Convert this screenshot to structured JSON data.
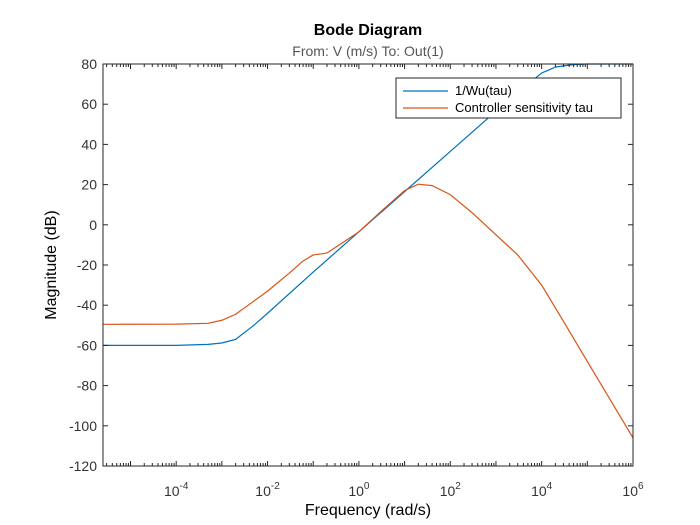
{
  "chart_data": {
    "type": "line",
    "title": "Bode Diagram",
    "subtitle": "From: V (m/s)  To: Out(1)",
    "xlabel": "Frequency  (rad/s)",
    "ylabel": "Magnitude (dB)",
    "x_scale": "log",
    "xlim": [
      2.5e-06,
      1000000.0
    ],
    "ylim": [
      -120,
      80
    ],
    "x_tick_values": [
      0.0001,
      0.01,
      1,
      100,
      10000,
      1000000
    ],
    "x_tick_labels": [
      {
        "base": "10",
        "exp": "-4"
      },
      {
        "base": "10",
        "exp": "-2"
      },
      {
        "base": "10",
        "exp": "0"
      },
      {
        "base": "10",
        "exp": "2"
      },
      {
        "base": "10",
        "exp": "4"
      },
      {
        "base": "10",
        "exp": "6"
      }
    ],
    "y_ticks": [
      80,
      60,
      40,
      20,
      0,
      -20,
      -40,
      -60,
      -80,
      -100,
      -120
    ],
    "grid": false,
    "legend_position": "top-right",
    "series": [
      {
        "name": "1/Wu(tau)",
        "color": "#0072BD",
        "x": [
          2.5e-06,
          0.0001,
          0.0005,
          0.001,
          0.002,
          0.005,
          0.01,
          0.1,
          1,
          10,
          100,
          1000,
          5000,
          10000,
          20000,
          50000,
          100000,
          1000000
        ],
        "y": [
          -60,
          -60,
          -59.5,
          -58.8,
          -57,
          -50,
          -44,
          -23.5,
          -3.5,
          16.5,
          36.5,
          56.5,
          70,
          75.5,
          78.5,
          79.7,
          80,
          80
        ]
      },
      {
        "name": "Controller sensitivity tau",
        "color": "#D95319",
        "x": [
          2.5e-06,
          0.0001,
          0.0005,
          0.001,
          0.002,
          0.005,
          0.01,
          0.03,
          0.06,
          0.1,
          0.15,
          0.2,
          1,
          3,
          10,
          20,
          40,
          100,
          300,
          1000,
          3000,
          10000,
          30000,
          100000,
          1000000
        ],
        "y": [
          -49.5,
          -49.4,
          -49,
          -47.5,
          -44.5,
          -38,
          -33,
          -24,
          -18,
          -15,
          -14.5,
          -14,
          -3.5,
          6.5,
          17,
          20.2,
          19.5,
          15,
          6,
          -5,
          -15,
          -30,
          -48,
          -68,
          -106
        ]
      }
    ]
  }
}
